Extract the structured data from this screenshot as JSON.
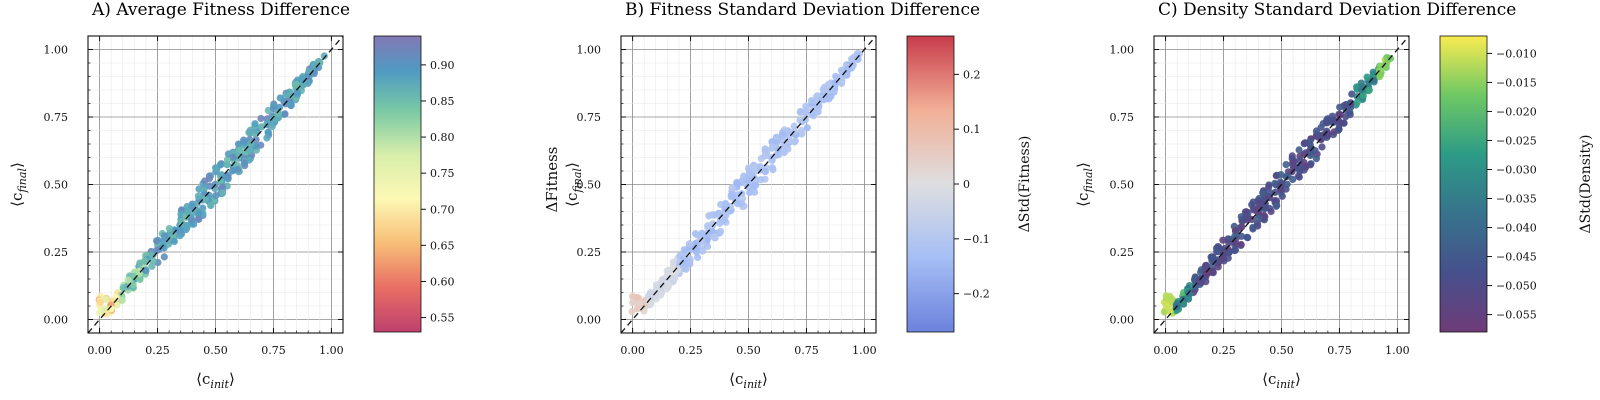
{
  "panels": [
    {
      "title": "A) Average Fitness Difference",
      "colorbar_label": "",
      "ylabel_extra": "",
      "colormap": "spectral",
      "cbar_range": [
        0.53,
        0.94
      ],
      "cbar_ticks": [
        "0.55",
        "0.60",
        "0.65",
        "0.70",
        "0.75",
        "0.80",
        "0.85",
        "0.90"
      ],
      "cbar_tick_values": [
        0.55,
        0.6,
        0.65,
        0.7,
        0.75,
        0.8,
        0.85,
        0.9
      ]
    },
    {
      "title": "B) Fitness Standard Deviation Difference",
      "colorbar_label": "ΔStd(Fitness)",
      "ylabel_extra": "ΔFitness",
      "colormap": "coolwarm",
      "cbar_range": [
        -0.27,
        0.27
      ],
      "cbar_ticks": [
        "−0.2",
        "−0.1",
        "0",
        "0.1",
        "0.2"
      ],
      "cbar_tick_values": [
        -0.2,
        -0.1,
        0,
        0.1,
        0.2
      ]
    },
    {
      "title": "C) Density Standard Deviation Difference",
      "colorbar_label": "ΔStd(Density)",
      "ylabel_extra": "",
      "colormap": "viridis",
      "cbar_range": [
        -0.058,
        -0.007
      ],
      "cbar_ticks": [
        "−0.055",
        "−0.050",
        "−0.045",
        "−0.040",
        "−0.035",
        "−0.030",
        "−0.025",
        "−0.020",
        "−0.015",
        "−0.010"
      ],
      "cbar_tick_values": [
        -0.055,
        -0.05,
        -0.045,
        -0.04,
        -0.035,
        -0.03,
        -0.025,
        -0.02,
        -0.015,
        -0.01
      ]
    }
  ],
  "axes": {
    "xlabel": "⟨c",
    "xlabel_sub": "init",
    "xlabel_close": "⟩",
    "ylabel": "⟨c",
    "ylabel_sub": "final",
    "ylabel_close": "⟩",
    "x_ticks": [
      "0.00",
      "0.25",
      "0.50",
      "0.75",
      "1.00"
    ],
    "y_ticks": [
      "0.00",
      "0.25",
      "0.50",
      "0.75",
      "1.00"
    ]
  },
  "chart_data": [
    {
      "type": "scatter",
      "title": "A) Average Fitness Difference",
      "xlabel": "⟨c_init⟩",
      "ylabel": "⟨c_final⟩",
      "xlim": [
        -0.05,
        1.05
      ],
      "ylim": [
        -0.05,
        1.05
      ],
      "grid": true,
      "reference_line": "y = x (dashed)",
      "color_scale": "spectral",
      "color_range": [
        0.53,
        0.94
      ],
      "points_model": "approximately y ≈ x with ±0.05 spread, ~350 points, x from 0 to 0.97",
      "color_trend": "low x: ~0.6–0.78 (red/yellow); x > 0.15: ~0.85–0.92 (teal/blue)"
    },
    {
      "type": "scatter",
      "title": "B) Fitness Standard Deviation Difference",
      "xlabel": "⟨c_init⟩",
      "ylabel": "ΔFitness ⟨c_final⟩",
      "xlim": [
        -0.05,
        1.05
      ],
      "ylim": [
        -0.05,
        1.05
      ],
      "grid": true,
      "reference_line": "y = x (dashed)",
      "color_label": "ΔStd(Fitness)",
      "color_scale": "coolwarm",
      "color_range": [
        -0.27,
        0.27
      ],
      "color_trend": "x < 0.1: ~0.05 (light red); otherwise ~-0.1 to -0.15 (light blue)"
    },
    {
      "type": "scatter",
      "title": "C) Density Standard Deviation Difference",
      "xlabel": "⟨c_init⟩",
      "ylabel": "⟨c_final⟩",
      "xlim": [
        -0.05,
        1.05
      ],
      "ylim": [
        -0.05,
        1.05
      ],
      "grid": true,
      "reference_line": "y = x (dashed)",
      "color_label": "ΔStd(Density)",
      "color_scale": "viridis",
      "color_range": [
        -0.058,
        -0.007
      ],
      "color_trend": "x < 0.05: ~-0.01 (yellow); mid x: ~-0.05 (purple); x > 0.9: ~-0.015 (yellow-green)"
    }
  ]
}
